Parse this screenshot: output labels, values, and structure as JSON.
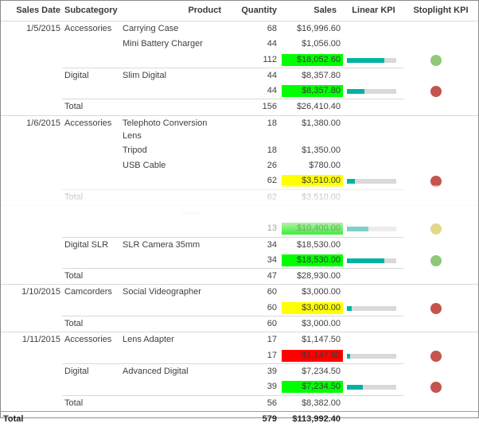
{
  "table": {
    "columns": [
      {
        "key": "date",
        "label": "Sales Date"
      },
      {
        "key": "subcategory",
        "label": "Subcategory"
      },
      {
        "key": "product",
        "label": "Product"
      },
      {
        "key": "quantity",
        "label": "Quantity"
      },
      {
        "key": "sales",
        "label": "Sales"
      },
      {
        "key": "linear_kpi",
        "label": "Linear KPI"
      },
      {
        "key": "stoplight_kpi",
        "label": "Stoplight KPI"
      }
    ],
    "rows": [
      {
        "cells": {
          "date": "1/5/2015",
          "subcategory": "Accessories",
          "product": "Carrying Case",
          "quantity": "68",
          "sales": "$16,996.60"
        }
      },
      {
        "cells": {
          "product": "Mini Battery Charger",
          "quantity": "44",
          "sales": "$1,056.00"
        }
      },
      {
        "cells": {
          "quantity": "112",
          "sales": "$18,052.60"
        },
        "sales_bg": "green",
        "kpi_pct": 76,
        "dot": "green"
      },
      {
        "cells": {
          "subcategory": "Digital",
          "product": "Slim Digital",
          "quantity": "44",
          "sales": "$8,357.80"
        },
        "sep": "partial"
      },
      {
        "cells": {
          "quantity": "44",
          "sales": "$8,357.80"
        },
        "sales_bg": "green",
        "kpi_pct": 35,
        "dot": "red"
      },
      {
        "cells": {
          "subcategory": "Total",
          "quantity": "156",
          "sales": "$26,410.40"
        },
        "sep": "partial"
      },
      {
        "cells": {
          "date": "1/6/2015",
          "subcategory": "Accessories",
          "product": "Telephoto Conversion Lens",
          "quantity": "18",
          "sales": "$1,380.00"
        },
        "sep": "full",
        "tall": true
      },
      {
        "cells": {
          "product": "Tripod",
          "quantity": "18",
          "sales": "$1,350.00"
        }
      },
      {
        "cells": {
          "product": "USB Cable",
          "quantity": "26",
          "sales": "$780.00"
        }
      },
      {
        "cells": {
          "quantity": "62",
          "sales": "$3,510.00"
        },
        "sales_bg": "yellow",
        "kpi_pct": 16,
        "dot": "red"
      },
      {
        "cells": {
          "subcategory": "Total",
          "quantity": "62",
          "sales": "$3,510.00"
        },
        "sep": "partial"
      },
      {
        "cells": {},
        "sep": "full",
        "artifact": true
      },
      {
        "cells": {
          "quantity": "13",
          "sales": "$10,400.00"
        },
        "sales_bg": "green",
        "kpi_pct": 43,
        "dot": "yellow",
        "faded": true
      },
      {
        "cells": {
          "subcategory": "Digital SLR",
          "product": "SLR Camera 35mm",
          "quantity": "34",
          "sales": "$18,530.00"
        },
        "sep": "partial"
      },
      {
        "cells": {
          "quantity": "34",
          "sales": "$18,530.00"
        },
        "sales_bg": "green",
        "kpi_pct": 76,
        "dot": "green"
      },
      {
        "cells": {
          "subcategory": "Total",
          "quantity": "47",
          "sales": "$28,930.00"
        },
        "sep": "partial"
      },
      {
        "cells": {
          "date": "1/10/2015",
          "subcategory": "Camcorders",
          "product": "Social Videographer",
          "quantity": "60",
          "sales": "$3,000.00"
        },
        "sep": "full"
      },
      {
        "cells": {
          "quantity": "60",
          "sales": "$3,000.00"
        },
        "sales_bg": "yellow",
        "kpi_pct": 10,
        "dot": "red"
      },
      {
        "cells": {
          "subcategory": "Total",
          "quantity": "60",
          "sales": "$3,000.00"
        },
        "sep": "partial"
      },
      {
        "cells": {
          "date": "1/11/2015",
          "subcategory": "Accessories",
          "product": "Lens Adapter",
          "quantity": "17",
          "sales": "$1,147.50"
        },
        "sep": "full"
      },
      {
        "cells": {
          "quantity": "17",
          "sales": "$1,147.50"
        },
        "sales_bg": "red",
        "kpi_pct": 6,
        "dot": "red"
      },
      {
        "cells": {
          "subcategory": "Digital",
          "product": "Advanced Digital",
          "quantity": "39",
          "sales": "$7,234.50"
        },
        "sep": "partial"
      },
      {
        "cells": {
          "quantity": "39",
          "sales": "$7,234.50"
        },
        "sales_bg": "green",
        "kpi_pct": 32,
        "dot": "red"
      },
      {
        "cells": {
          "subcategory": "Total",
          "quantity": "56",
          "sales": "$8,382.00"
        },
        "sep": "partial"
      },
      {
        "cells": {
          "date": "Total",
          "quantity": "579",
          "sales": "$113,992.40"
        },
        "grand": true
      }
    ]
  },
  "colors": {
    "kpi_bar_fill": "#00b2a2",
    "kpi_bar_track": "#d9d9d9",
    "cell_green": "#00ff00",
    "cell_yellow": "#ffff00",
    "cell_red": "#ff0000",
    "dot_green": "#90c878",
    "dot_red": "#c4544e",
    "dot_yellow": "#e2d88c",
    "text": "#3f3f3f",
    "separator_line": "#d9d9d9"
  }
}
